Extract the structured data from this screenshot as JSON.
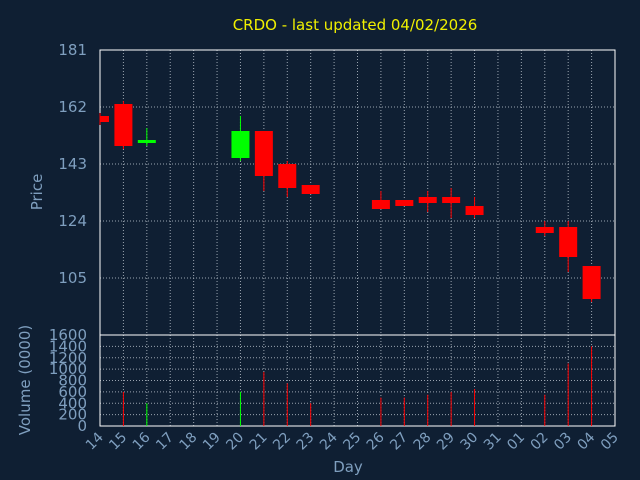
{
  "chart_data": {
    "type": "candlestick",
    "title": "CRDO - last updated 04/02/2026",
    "xlabel": "Day",
    "price_panel": {
      "ylabel": "Price",
      "ylim": [
        86,
        181
      ],
      "yticks": [
        181,
        162,
        143,
        124,
        105
      ]
    },
    "volume_panel": {
      "ylabel": "Volume (0000)",
      "ylim": [
        0,
        1600
      ],
      "yticks": [
        1600,
        1400,
        1200,
        1000,
        800,
        600,
        400,
        200,
        0
      ]
    },
    "x_ticks": [
      "14",
      "15",
      "16",
      "17",
      "18",
      "19",
      "20",
      "21",
      "22",
      "23",
      "24",
      "25",
      "26",
      "27",
      "28",
      "29",
      "30",
      "31",
      "01",
      "02",
      "03",
      "04",
      "05"
    ],
    "candles": [
      {
        "day": "14",
        "open": 159,
        "high": 160,
        "low": 156,
        "close": 157,
        "volume": 0
      },
      {
        "day": "15",
        "open": 163,
        "high": 164,
        "low": 148,
        "close": 149,
        "volume": 600
      },
      {
        "day": "16",
        "open": 150,
        "high": 155,
        "low": 149,
        "close": 151,
        "volume": 400
      },
      {
        "day": "20",
        "open": 145,
        "high": 159,
        "low": 144,
        "close": 154,
        "volume": 600
      },
      {
        "day": "21",
        "open": 154,
        "high": 154,
        "low": 134,
        "close": 139,
        "volume": 950
      },
      {
        "day": "22",
        "open": 143,
        "high": 144,
        "low": 132,
        "close": 135,
        "volume": 750
      },
      {
        "day": "23",
        "open": 136,
        "high": 136,
        "low": 133,
        "close": 133,
        "volume": 400
      },
      {
        "day": "26",
        "open": 131,
        "high": 134,
        "low": 128,
        "close": 128,
        "volume": 500
      },
      {
        "day": "27",
        "open": 131,
        "high": 131,
        "low": 129,
        "close": 129,
        "volume": 500
      },
      {
        "day": "28",
        "open": 132,
        "high": 134,
        "low": 127,
        "close": 130,
        "volume": 550
      },
      {
        "day": "29",
        "open": 132,
        "high": 135,
        "low": 125,
        "close": 130,
        "volume": 600
      },
      {
        "day": "30",
        "open": 129,
        "high": 132,
        "low": 125,
        "close": 126,
        "volume": 650
      },
      {
        "day": "02",
        "open": 122,
        "high": 124,
        "low": 119,
        "close": 120,
        "volume": 550
      },
      {
        "day": "03",
        "open": 122,
        "high": 124,
        "low": 107,
        "close": 112,
        "volume": 1100
      },
      {
        "day": "04",
        "open": 109,
        "high": 109,
        "low": 97,
        "close": 98,
        "volume": 1400
      }
    ],
    "colors": {
      "up": "#00ff00",
      "down": "#ff0000",
      "background": "#0f1f33",
      "grid": "#9aa4b0",
      "axis_text": "#7f9fbf",
      "title": "#f0f000"
    },
    "grid": true
  }
}
